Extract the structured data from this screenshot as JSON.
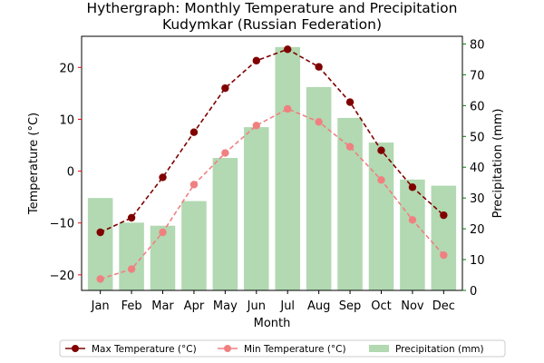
{
  "chart_data": {
    "type": "bar+line",
    "title_line1": "Hythergraph: Monthly Temperature and Precipitation",
    "title_line2": "Kudymkar (Russian Federation)",
    "xlabel": "Month",
    "ylabel_left": "Temperature (°C)",
    "ylabel_right": "Precipitation (mm)",
    "categories": [
      "Jan",
      "Feb",
      "Mar",
      "Apr",
      "May",
      "Jun",
      "Jul",
      "Aug",
      "Sep",
      "Oct",
      "Nov",
      "Dec"
    ],
    "y_left_lim": [
      -23,
      26
    ],
    "y_left_ticks": [
      -20,
      -10,
      0,
      10,
      20
    ],
    "y_left_tick_labels": [
      "−20",
      "−10",
      "0",
      "10",
      "20"
    ],
    "y_right_lim": [
      0,
      82.5
    ],
    "y_right_ticks": [
      0,
      10,
      20,
      30,
      40,
      50,
      60,
      70,
      80
    ],
    "series": [
      {
        "name": "Max Temperature (°C)",
        "kind": "line",
        "axis": "left",
        "color": "#800000",
        "values": [
          -11.8,
          -9.0,
          -1.2,
          7.5,
          16.0,
          21.3,
          23.5,
          20.1,
          13.3,
          4.0,
          -3.1,
          -8.5
        ]
      },
      {
        "name": "Min Temperature (°C)",
        "kind": "line",
        "axis": "left",
        "color": "#f08080",
        "values": [
          -20.8,
          -18.9,
          -11.8,
          -2.6,
          3.5,
          8.8,
          12.0,
          9.5,
          4.7,
          -1.7,
          -9.4,
          -16.2
        ]
      },
      {
        "name": "Precipitation (mm)",
        "kind": "bar",
        "axis": "right",
        "color": "#b2d9b2",
        "values": [
          30,
          22,
          21,
          29,
          43,
          53,
          79,
          66,
          56,
          48,
          36,
          34
        ]
      }
    ],
    "legend_position": "bottom-center",
    "grid": false
  },
  "colors": {
    "left_axis": "#ff0000",
    "right_axis": "#008000"
  }
}
